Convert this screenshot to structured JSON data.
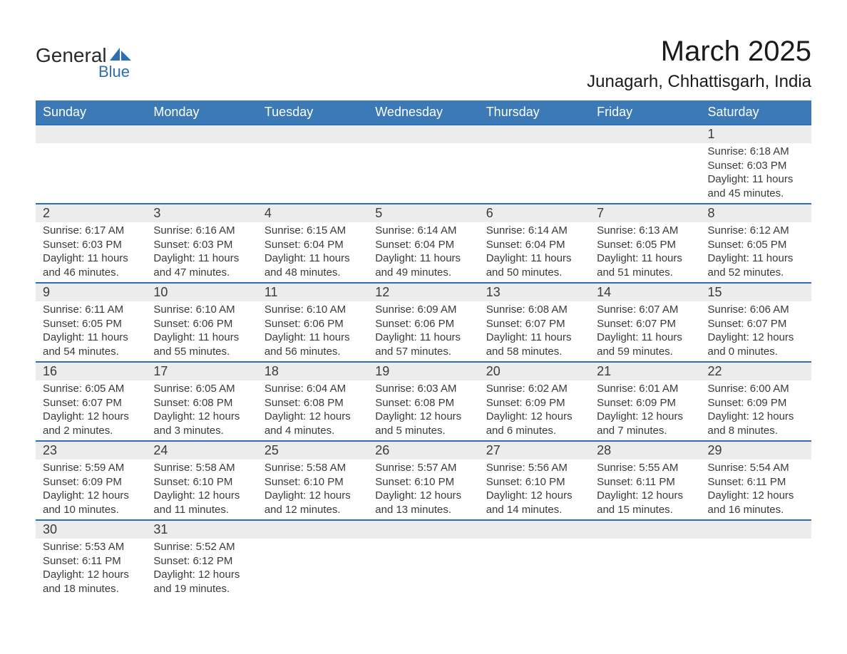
{
  "brand": {
    "general": "General",
    "blue": "Blue",
    "icon_color": "#2e6eb3"
  },
  "title": {
    "month": "March 2025",
    "location": "Junagarh, Chhattisgarh, India"
  },
  "style": {
    "header_bg": "#3b79b7",
    "header_fg": "#ffffff",
    "daynum_bg": "#ececec",
    "daynum_border": "#2e6eb3",
    "text_color": "#3a3a3a",
    "title_color": "#1a1a1a",
    "font_family": "Arial, Helvetica, sans-serif",
    "month_fontsize": 40,
    "location_fontsize": 24,
    "header_fontsize": 18,
    "daynum_fontsize": 18,
    "detail_fontsize": 15
  },
  "columns": [
    "Sunday",
    "Monday",
    "Tuesday",
    "Wednesday",
    "Thursday",
    "Friday",
    "Saturday"
  ],
  "weeks": [
    [
      null,
      null,
      null,
      null,
      null,
      null,
      {
        "n": "1",
        "sr": "Sunrise: 6:18 AM",
        "ss": "Sunset: 6:03 PM",
        "d1": "Daylight: 11 hours",
        "d2": "and 45 minutes."
      }
    ],
    [
      {
        "n": "2",
        "sr": "Sunrise: 6:17 AM",
        "ss": "Sunset: 6:03 PM",
        "d1": "Daylight: 11 hours",
        "d2": "and 46 minutes."
      },
      {
        "n": "3",
        "sr": "Sunrise: 6:16 AM",
        "ss": "Sunset: 6:03 PM",
        "d1": "Daylight: 11 hours",
        "d2": "and 47 minutes."
      },
      {
        "n": "4",
        "sr": "Sunrise: 6:15 AM",
        "ss": "Sunset: 6:04 PM",
        "d1": "Daylight: 11 hours",
        "d2": "and 48 minutes."
      },
      {
        "n": "5",
        "sr": "Sunrise: 6:14 AM",
        "ss": "Sunset: 6:04 PM",
        "d1": "Daylight: 11 hours",
        "d2": "and 49 minutes."
      },
      {
        "n": "6",
        "sr": "Sunrise: 6:14 AM",
        "ss": "Sunset: 6:04 PM",
        "d1": "Daylight: 11 hours",
        "d2": "and 50 minutes."
      },
      {
        "n": "7",
        "sr": "Sunrise: 6:13 AM",
        "ss": "Sunset: 6:05 PM",
        "d1": "Daylight: 11 hours",
        "d2": "and 51 minutes."
      },
      {
        "n": "8",
        "sr": "Sunrise: 6:12 AM",
        "ss": "Sunset: 6:05 PM",
        "d1": "Daylight: 11 hours",
        "d2": "and 52 minutes."
      }
    ],
    [
      {
        "n": "9",
        "sr": "Sunrise: 6:11 AM",
        "ss": "Sunset: 6:05 PM",
        "d1": "Daylight: 11 hours",
        "d2": "and 54 minutes."
      },
      {
        "n": "10",
        "sr": "Sunrise: 6:10 AM",
        "ss": "Sunset: 6:06 PM",
        "d1": "Daylight: 11 hours",
        "d2": "and 55 minutes."
      },
      {
        "n": "11",
        "sr": "Sunrise: 6:10 AM",
        "ss": "Sunset: 6:06 PM",
        "d1": "Daylight: 11 hours",
        "d2": "and 56 minutes."
      },
      {
        "n": "12",
        "sr": "Sunrise: 6:09 AM",
        "ss": "Sunset: 6:06 PM",
        "d1": "Daylight: 11 hours",
        "d2": "and 57 minutes."
      },
      {
        "n": "13",
        "sr": "Sunrise: 6:08 AM",
        "ss": "Sunset: 6:07 PM",
        "d1": "Daylight: 11 hours",
        "d2": "and 58 minutes."
      },
      {
        "n": "14",
        "sr": "Sunrise: 6:07 AM",
        "ss": "Sunset: 6:07 PM",
        "d1": "Daylight: 11 hours",
        "d2": "and 59 minutes."
      },
      {
        "n": "15",
        "sr": "Sunrise: 6:06 AM",
        "ss": "Sunset: 6:07 PM",
        "d1": "Daylight: 12 hours",
        "d2": "and 0 minutes."
      }
    ],
    [
      {
        "n": "16",
        "sr": "Sunrise: 6:05 AM",
        "ss": "Sunset: 6:07 PM",
        "d1": "Daylight: 12 hours",
        "d2": "and 2 minutes."
      },
      {
        "n": "17",
        "sr": "Sunrise: 6:05 AM",
        "ss": "Sunset: 6:08 PM",
        "d1": "Daylight: 12 hours",
        "d2": "and 3 minutes."
      },
      {
        "n": "18",
        "sr": "Sunrise: 6:04 AM",
        "ss": "Sunset: 6:08 PM",
        "d1": "Daylight: 12 hours",
        "d2": "and 4 minutes."
      },
      {
        "n": "19",
        "sr": "Sunrise: 6:03 AM",
        "ss": "Sunset: 6:08 PM",
        "d1": "Daylight: 12 hours",
        "d2": "and 5 minutes."
      },
      {
        "n": "20",
        "sr": "Sunrise: 6:02 AM",
        "ss": "Sunset: 6:09 PM",
        "d1": "Daylight: 12 hours",
        "d2": "and 6 minutes."
      },
      {
        "n": "21",
        "sr": "Sunrise: 6:01 AM",
        "ss": "Sunset: 6:09 PM",
        "d1": "Daylight: 12 hours",
        "d2": "and 7 minutes."
      },
      {
        "n": "22",
        "sr": "Sunrise: 6:00 AM",
        "ss": "Sunset: 6:09 PM",
        "d1": "Daylight: 12 hours",
        "d2": "and 8 minutes."
      }
    ],
    [
      {
        "n": "23",
        "sr": "Sunrise: 5:59 AM",
        "ss": "Sunset: 6:09 PM",
        "d1": "Daylight: 12 hours",
        "d2": "and 10 minutes."
      },
      {
        "n": "24",
        "sr": "Sunrise: 5:58 AM",
        "ss": "Sunset: 6:10 PM",
        "d1": "Daylight: 12 hours",
        "d2": "and 11 minutes."
      },
      {
        "n": "25",
        "sr": "Sunrise: 5:58 AM",
        "ss": "Sunset: 6:10 PM",
        "d1": "Daylight: 12 hours",
        "d2": "and 12 minutes."
      },
      {
        "n": "26",
        "sr": "Sunrise: 5:57 AM",
        "ss": "Sunset: 6:10 PM",
        "d1": "Daylight: 12 hours",
        "d2": "and 13 minutes."
      },
      {
        "n": "27",
        "sr": "Sunrise: 5:56 AM",
        "ss": "Sunset: 6:10 PM",
        "d1": "Daylight: 12 hours",
        "d2": "and 14 minutes."
      },
      {
        "n": "28",
        "sr": "Sunrise: 5:55 AM",
        "ss": "Sunset: 6:11 PM",
        "d1": "Daylight: 12 hours",
        "d2": "and 15 minutes."
      },
      {
        "n": "29",
        "sr": "Sunrise: 5:54 AM",
        "ss": "Sunset: 6:11 PM",
        "d1": "Daylight: 12 hours",
        "d2": "and 16 minutes."
      }
    ],
    [
      {
        "n": "30",
        "sr": "Sunrise: 5:53 AM",
        "ss": "Sunset: 6:11 PM",
        "d1": "Daylight: 12 hours",
        "d2": "and 18 minutes."
      },
      {
        "n": "31",
        "sr": "Sunrise: 5:52 AM",
        "ss": "Sunset: 6:12 PM",
        "d1": "Daylight: 12 hours",
        "d2": "and 19 minutes."
      },
      null,
      null,
      null,
      null,
      null
    ]
  ]
}
